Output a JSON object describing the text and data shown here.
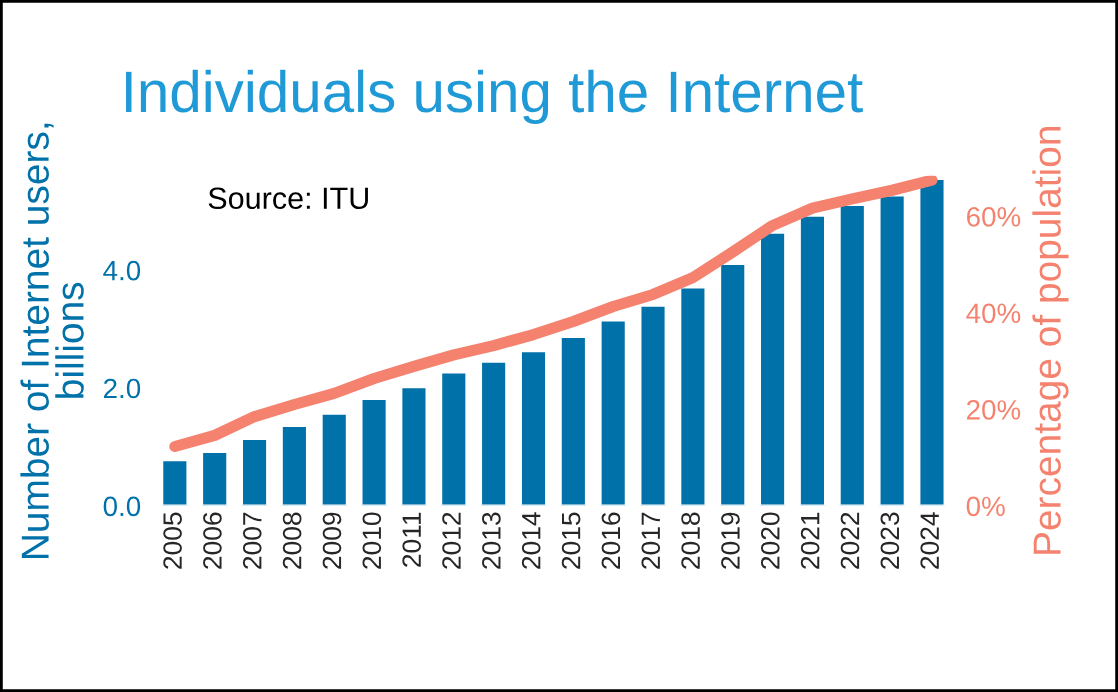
{
  "chart_data": {
    "type": "bar",
    "title": "Individuals using the Internet",
    "ylabel": "Number of Internet users,\nbillions",
    "y2label": "Percentage of population",
    "annotations": [
      "Source: ITU"
    ],
    "categories": [
      "2005",
      "2006",
      "2007",
      "2008",
      "2009",
      "2010",
      "2011",
      "2012",
      "2013",
      "2014",
      "2015",
      "2016",
      "2017",
      "2018",
      "2019",
      "2020",
      "2021",
      "2022",
      "2023",
      "2024"
    ],
    "series": [
      {
        "color": "#0071a9",
        "values": [
          0.78,
          0.92,
          1.14,
          1.36,
          1.57,
          1.82,
          2.02,
          2.27,
          2.45,
          2.63,
          2.87,
          3.15,
          3.4,
          3.71,
          4.11,
          4.64,
          4.93,
          5.11,
          5.27,
          5.55
        ]
      },
      {
        "type": "line",
        "axis": "y2",
        "color": "#f4826e",
        "values": [
          12.3,
          14.6,
          18.5,
          21.0,
          23.3,
          26.4,
          28.9,
          31.3,
          33.2,
          35.5,
          38.2,
          41.3,
          43.8,
          47.3,
          52.6,
          58.1,
          61.7,
          63.6,
          65.4,
          67.5
        ]
      }
    ],
    "ylim": [
      0,
      5.6
    ],
    "yticks": [
      {
        "value": 0,
        "label": "0.0"
      },
      {
        "value": 2,
        "label": "2.0"
      },
      {
        "value": 4,
        "label": "4.0"
      }
    ],
    "y2lim": [
      0,
      68.4
    ],
    "y2ticks": [
      {
        "value": 0,
        "label": "0%"
      },
      {
        "value": 20,
        "label": "20%"
      },
      {
        "value": 40,
        "label": "40%"
      },
      {
        "value": 60,
        "label": "60%"
      }
    ],
    "grid": false,
    "legend": false
  }
}
